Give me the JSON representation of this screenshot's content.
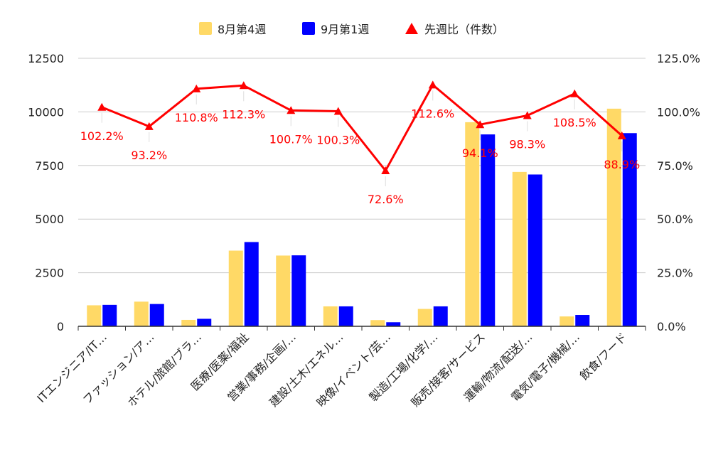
{
  "chart_data": {
    "type": "bar",
    "categories": [
      "ITエンジニア/IT…",
      "ファッション/ア…",
      "ホテル/旅館/ブラ…",
      "医療/医薬/福祉",
      "営業/事務/企画/…",
      "建設/土木/エネル…",
      "映像/イベント/芸…",
      "製造/工場/化学/…",
      "販売/接客/サービス",
      "運輸/物流/配送/…",
      "電気/電子/機械/…",
      "飲食/フード"
    ],
    "series": [
      {
        "name": "8月第4週",
        "type": "bar",
        "axis": "left",
        "color": "#ffd966",
        "values": [
          980,
          1150,
          300,
          3530,
          3300,
          930,
          290,
          810,
          9520,
          7200,
          460,
          10150
        ]
      },
      {
        "name": "9月第1週",
        "type": "bar",
        "axis": "left",
        "color": "#0000ff",
        "values": [
          1000,
          1040,
          350,
          3930,
          3310,
          930,
          190,
          930,
          8950,
          7080,
          530,
          9010
        ]
      },
      {
        "name": "先週比（件数）",
        "type": "line",
        "axis": "right",
        "color": "#ff0000",
        "marker": "triangle",
        "values": [
          102.2,
          93.2,
          110.8,
          112.3,
          100.7,
          100.3,
          72.6,
          112.6,
          94.1,
          98.3,
          108.5,
          88.9
        ],
        "labels": [
          "102.2%",
          "93.2%",
          "110.8%",
          "112.3%",
          "100.7%",
          "100.3%",
          "72.6%",
          "112.6%",
          "94.1%",
          "98.3%",
          "108.5%",
          "88.9%"
        ]
      }
    ],
    "y_left": {
      "min": 0,
      "max": 12500,
      "ticks": [
        "0",
        "2500",
        "5000",
        "7500",
        "10000",
        "12500"
      ]
    },
    "y_right": {
      "min": 0,
      "max": 125,
      "ticks": [
        "0.0%",
        "25.0%",
        "50.0%",
        "75.0%",
        "100.0%",
        "125.0%"
      ]
    },
    "grid": true,
    "legend_position": "top"
  }
}
